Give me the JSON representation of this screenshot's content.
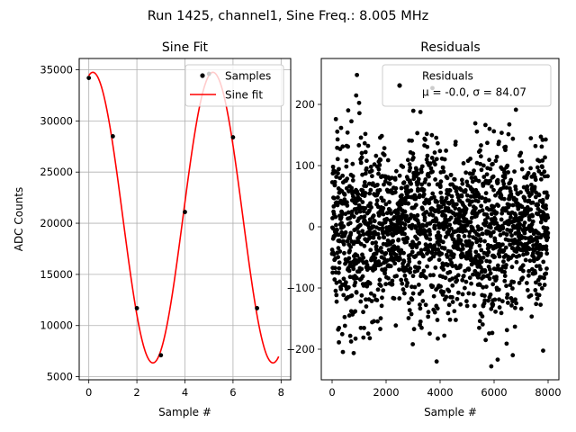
{
  "figure": {
    "suptitle": "Run 1425, channel1, Sine Freq.: 8.005 MHz"
  },
  "chart_data": [
    {
      "type": "line",
      "title": "Sine Fit",
      "xlabel": "Sample #",
      "ylabel": "ADC Counts",
      "xlim": [
        -0.4,
        8.4
      ],
      "ylim": [
        4700,
        36100
      ],
      "xticks": [
        0,
        2,
        4,
        6,
        8
      ],
      "yticks": [
        5000,
        10000,
        15000,
        20000,
        25000,
        30000,
        35000
      ],
      "xtick_labels": [
        "0",
        "2",
        "4",
        "6",
        "8"
      ],
      "ytick_labels": [
        "5000",
        "10000",
        "15000",
        "20000",
        "25000",
        "30000",
        "35000"
      ],
      "grid": true,
      "legend": {
        "placement": "top-right",
        "entries": [
          "Samples",
          "Sine fit"
        ]
      },
      "series": [
        {
          "name": "Samples",
          "kind": "scatter",
          "color": "#000000",
          "x": [
            0,
            1,
            2,
            3,
            4,
            5,
            6,
            7
          ],
          "y": [
            34200,
            28500,
            11700,
            7100,
            21100,
            34600,
            28400,
            11700
          ]
        },
        {
          "name": "Sine fit",
          "kind": "line",
          "color": "#ff0000",
          "model": {
            "offset": 20550,
            "amplitude": 14200,
            "period_samples": 4.997,
            "phase_rad": 1.36
          },
          "x_range": [
            0,
            7.9
          ]
        }
      ]
    },
    {
      "type": "scatter",
      "title": "Residuals",
      "xlabel": "Sample #",
      "ylabel": "",
      "xlim": [
        -400,
        8400
      ],
      "ylim": [
        -250,
        275
      ],
      "xticks": [
        0,
        2000,
        4000,
        6000,
        8000
      ],
      "yticks": [
        -200,
        -100,
        0,
        100,
        200
      ],
      "xtick_labels": [
        "0",
        "2000",
        "4000",
        "6000",
        "8000"
      ],
      "ytick_labels": [
        "−200",
        "−100",
        "0",
        "100",
        "200"
      ],
      "grid": false,
      "legend": {
        "placement": "top-right",
        "entries": [
          "Residuals",
          "μ = -0.0, σ = 84.07"
        ]
      },
      "series": [
        {
          "name": "Residuals",
          "color": "#000000",
          "n_points": 8000,
          "mean": -0.0,
          "std": 84.07,
          "min": -228,
          "max": 248,
          "envelope_period_samples": 2500
        }
      ]
    }
  ]
}
